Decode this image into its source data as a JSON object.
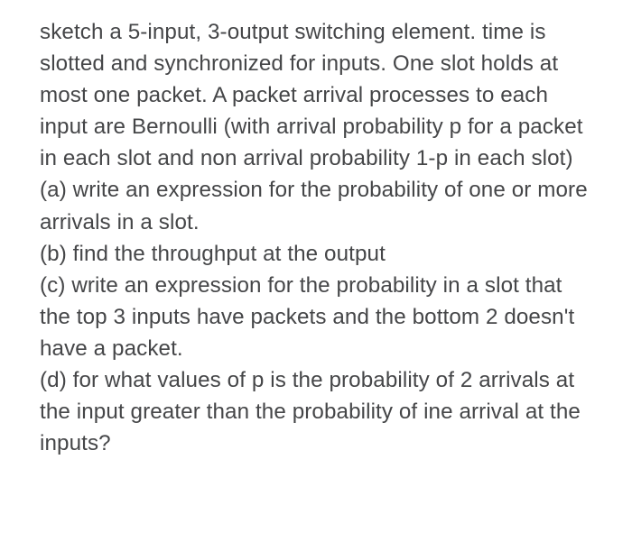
{
  "paragraphs": {
    "intro": "sketch a 5-input, 3-output switching element. time is slotted and synchronized for inputs. One slot holds at most one packet. A packet arrival processes to each input are Bernoulli (with arrival probability p for a packet in each slot and non arrival probability 1-p in each slot)",
    "a": "(a) write an expression for the probability of one or more arrivals in a slot.",
    "b": "(b) find the throughput at the output",
    "c": "(c) write an expression for the probability in a slot that the top 3 inputs have packets and the bottom 2 doesn't have a packet.",
    "d": "(d) for what values of p is the probability of 2 arrivals at the input greater than the probability of ine arrival at the inputs?"
  },
  "style": {
    "background_color": "#ffffff",
    "text_color": "#454648",
    "font_size": 24.2,
    "line_height": 1.45,
    "font_family": "-apple-system, Helvetica, Arial, sans-serif"
  }
}
